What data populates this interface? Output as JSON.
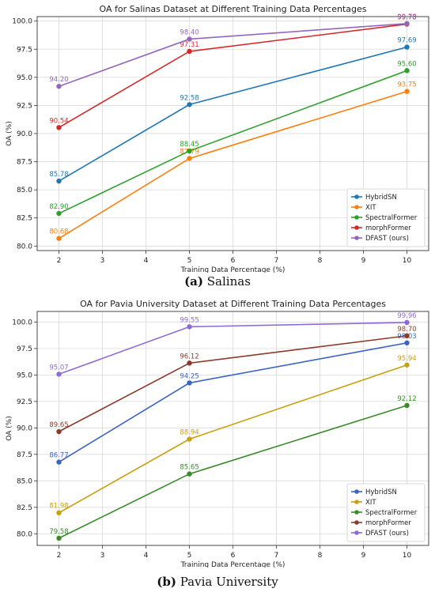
{
  "figure": {
    "captions": [
      {
        "letter": "(a)",
        "text": "Salinas"
      },
      {
        "letter": "(b)",
        "text": "Pavia University"
      }
    ]
  },
  "chart_data": [
    {
      "type": "line",
      "title": "OA for Salinas Dataset at Different Training Data Percentages",
      "xlabel": "Training Data Percentage (%)",
      "ylabel": "OA (%)",
      "x": [
        2,
        5,
        10
      ],
      "xlim": [
        1.5,
        10.5
      ],
      "ylim": [
        79.6,
        100.4
      ],
      "xticks": [
        "2",
        "3",
        "4",
        "5",
        "6",
        "7",
        "8",
        "9",
        "10"
      ],
      "yticks": [
        "80.0",
        "82.5",
        "85.0",
        "87.5",
        "90.0",
        "92.5",
        "95.0",
        "97.5",
        "100.0"
      ],
      "grid": true,
      "legend_position": "lower-right",
      "series": [
        {
          "name": "HybridSN",
          "color": "#1f77b4",
          "values": [
            85.78,
            92.58,
            97.69
          ],
          "labels": [
            "85.78",
            "92.58",
            "97.69"
          ]
        },
        {
          "name": "XIT",
          "color": "#ff7f0e",
          "values": [
            80.68,
            87.79,
            93.75
          ],
          "labels": [
            "80.68",
            "87.79",
            "93.75"
          ]
        },
        {
          "name": "SpectralFormer",
          "color": "#2ca02c",
          "values": [
            82.9,
            88.45,
            95.6
          ],
          "labels": [
            "82.90",
            "88.45",
            "95.60"
          ]
        },
        {
          "name": "morphFormer",
          "color": "#d62728",
          "values": [
            90.54,
            97.31,
            99.73
          ],
          "labels": [
            "90.54",
            "97.31",
            "99.73"
          ]
        },
        {
          "name": "DFAST (ours)",
          "color": "#9467bd",
          "values": [
            94.2,
            98.4,
            99.78
          ],
          "labels": [
            "94.20",
            "98.40",
            "99.78"
          ]
        }
      ]
    },
    {
      "type": "line",
      "title": "OA for Pavia University Dataset at Different Training Data Percentages",
      "xlabel": "Training Data Percentage (%)",
      "ylabel": "OA (%)",
      "x": [
        2,
        5,
        10
      ],
      "xlim": [
        1.5,
        10.5
      ],
      "ylim": [
        78.9,
        101.0
      ],
      "xticks": [
        "2",
        "3",
        "4",
        "5",
        "6",
        "7",
        "8",
        "9",
        "10"
      ],
      "yticks": [
        "80.0",
        "82.5",
        "85.0",
        "87.5",
        "90.0",
        "92.5",
        "95.0",
        "97.5",
        "100.0"
      ],
      "grid": true,
      "legend_position": "lower-right",
      "series": [
        {
          "name": "HybridSN",
          "color": "#3b63c4",
          "values": [
            86.77,
            94.25,
            98.03
          ],
          "labels": [
            "86.77",
            "94.25",
            "98.03"
          ]
        },
        {
          "name": "XIT",
          "color": "#c8a010",
          "values": [
            81.98,
            88.94,
            95.94
          ],
          "labels": [
            "81.98",
            "88.94",
            "95.94"
          ]
        },
        {
          "name": "SpectralFormer",
          "color": "#3a8a2a",
          "values": [
            79.58,
            85.65,
            92.12
          ],
          "labels": [
            "79.58",
            "85.65",
            "92.12"
          ]
        },
        {
          "name": "morphFormer",
          "color": "#8c3a2a",
          "values": [
            89.65,
            96.12,
            98.7
          ],
          "labels": [
            "89.65",
            "96.12",
            "98.70"
          ]
        },
        {
          "name": "DFAST (ours)",
          "color": "#8e6ad8",
          "values": [
            95.07,
            99.55,
            99.96
          ],
          "labels": [
            "95.07",
            "99.55",
            "99.96"
          ]
        }
      ]
    }
  ]
}
